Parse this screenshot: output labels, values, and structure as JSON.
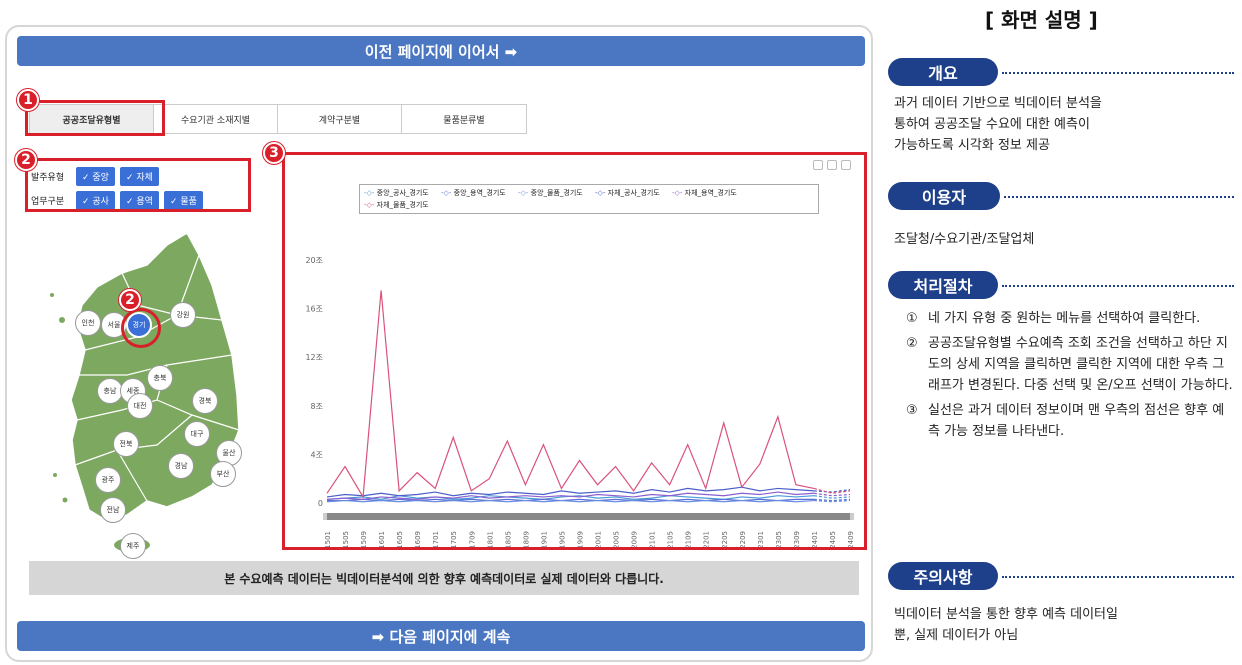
{
  "banners": {
    "top": "이전 페이지에 이어서 ➡",
    "bottom": "➡ 다음 페이지에 계속"
  },
  "tabs": [
    "공공조달유형별",
    "수요기관 소재지별",
    "계약구분별",
    "물품분류별"
  ],
  "badges": {
    "one": "1",
    "two": "2",
    "three": "3"
  },
  "filters": {
    "row1_label": "발주유형",
    "row1_chips": [
      "✓ 중앙",
      "✓ 자체"
    ],
    "row2_label": "업무구분",
    "row2_chips": [
      "✓ 공사",
      "✓ 용역",
      "✓ 물품"
    ]
  },
  "regions": {
    "incheon": "인천",
    "seoul": "서울",
    "gyeonggi": "경기",
    "gangwon": "강원",
    "chungbuk": "충북",
    "chungnam": "충남",
    "sejong": "세종",
    "daejeon": "대전",
    "gyeongbuk": "경북",
    "jeonbuk": "전북",
    "daegu": "대구",
    "ulsan": "울산",
    "gyeongnam": "경남",
    "busan": "부산",
    "gwangju": "광주",
    "jeonnam": "전남",
    "jeju": "제주"
  },
  "notice": "본 수요예측 데이터는 빅데이터분석에 의한 향후 예측데이터로 실제 데이터와 다릅니다.",
  "chart_data": {
    "type": "line",
    "y_ticks": [
      "20조",
      "16조",
      "12조",
      "8조",
      "4조",
      "0"
    ],
    "ylim": [
      0,
      20
    ],
    "x_ticks": [
      "201501",
      "201505",
      "201509",
      "201601",
      "201605",
      "201609",
      "201701",
      "201705",
      "201709",
      "201801",
      "201805",
      "201809",
      "201901",
      "201905",
      "201909",
      "202001",
      "202005",
      "202009",
      "202101",
      "202105",
      "202109",
      "202201",
      "202205",
      "202209",
      "202301",
      "202305",
      "202309",
      "202401",
      "202405",
      "202409"
    ],
    "series": [
      {
        "name": "중앙_공사_경기도",
        "color": "#4a9ad8",
        "values": [
          0.3,
          0.4,
          0.5,
          0.3,
          0.6,
          0.4,
          0.5,
          0.3,
          0.4,
          0.6,
          0.5,
          0.4,
          0.3,
          0.5,
          0.6,
          0.4,
          0.5,
          0.3,
          0.4,
          0.6,
          0.5,
          0.4,
          0.3,
          0.5,
          0.4,
          0.6,
          0.5,
          0.6,
          0.4,
          0.5
        ]
      },
      {
        "name": "중앙_용역_경기도",
        "color": "#5b6fd6",
        "values": [
          0.2,
          0.2,
          0.3,
          0.2,
          0.3,
          0.2,
          0.3,
          0.2,
          0.3,
          0.2,
          0.3,
          0.2,
          0.3,
          0.2,
          0.3,
          0.2,
          0.3,
          0.2,
          0.3,
          0.2,
          0.3,
          0.2,
          0.3,
          0.2,
          0.3,
          0.2,
          0.3,
          0.3,
          0.2,
          0.3
        ]
      },
      {
        "name": "중앙_물품_경기도",
        "color": "#6a8fe0",
        "values": [
          0.1,
          0.2,
          0.1,
          0.2,
          0.1,
          0.2,
          0.1,
          0.2,
          0.1,
          0.2,
          0.1,
          0.2,
          0.1,
          0.2,
          0.1,
          0.2,
          0.1,
          0.2,
          0.1,
          0.2,
          0.1,
          0.2,
          0.1,
          0.2,
          0.1,
          0.2,
          0.1,
          0.2,
          0.1,
          0.2
        ]
      },
      {
        "name": "자체_공사_경기도",
        "color": "#4a5fc8",
        "values": [
          0.5,
          0.7,
          0.6,
          0.8,
          0.6,
          0.7,
          0.9,
          0.6,
          0.8,
          0.7,
          0.9,
          0.8,
          0.7,
          1.0,
          0.8,
          0.9,
          1.0,
          0.8,
          1.1,
          0.9,
          1.2,
          1.0,
          1.1,
          1.3,
          1.0,
          1.2,
          1.1,
          1.0,
          0.9,
          1.1
        ]
      },
      {
        "name": "자체_용역_경기도",
        "color": "#8a5fd0",
        "values": [
          0.3,
          0.4,
          0.3,
          0.5,
          0.4,
          0.3,
          0.5,
          0.4,
          0.6,
          0.4,
          0.5,
          0.6,
          0.5,
          0.6,
          0.5,
          0.7,
          0.6,
          0.5,
          0.7,
          0.6,
          0.8,
          0.7,
          0.6,
          0.8,
          0.7,
          0.9,
          0.7,
          0.8,
          0.6,
          0.7
        ]
      },
      {
        "name": "자체_물품_경기도",
        "color": "#d9537a",
        "values": [
          0.8,
          3.0,
          0.5,
          17.5,
          1.0,
          2.5,
          1.2,
          5.4,
          1.0,
          2.0,
          5.1,
          1.5,
          4.8,
          1.2,
          3.5,
          1.5,
          3.0,
          1.0,
          3.3,
          1.5,
          4.8,
          1.2,
          6.6,
          1.3,
          3.2,
          7.1,
          1.5,
          1.2,
          0.8,
          1.0
        ]
      }
    ],
    "forecast_from_index": 27
  },
  "side": {
    "title": "[ 화면 설명 ]",
    "overview_label": "개요",
    "overview_text": [
      "과거 데이터 기반으로 빅데이터 분석을",
      "통하여 공공조달 수요에 대한 예측이",
      "가능하도록 시각화 정보 제공"
    ],
    "users_label": "이용자",
    "users_text": "조달청/수요기관/조달업체",
    "procedure_label": "처리절차",
    "steps": [
      {
        "num": "①",
        "text": "네 가지 유형 중 원하는 메뉴를 선택하여 클릭한다."
      },
      {
        "num": "②",
        "text": "공공조달유형별 수요예측 조회 조건을 선택하고 하단 지도의 상세 지역을 클릭하면 클릭한 지역에 대한 우측 그래프가 변경된다. 다중 선택 및 온/오프 선택이 가능하다."
      },
      {
        "num": "③",
        "text": "실선은 과거 데이터 정보이며 맨 우측의 점선은 향후 예측 가능 정보를 나타낸다."
      }
    ],
    "caution_label": "주의사항",
    "caution_text": [
      "빅데이터 분석을 통한 향후 예측 데이터일",
      "뿐, 실제 데이터가 아님"
    ]
  }
}
